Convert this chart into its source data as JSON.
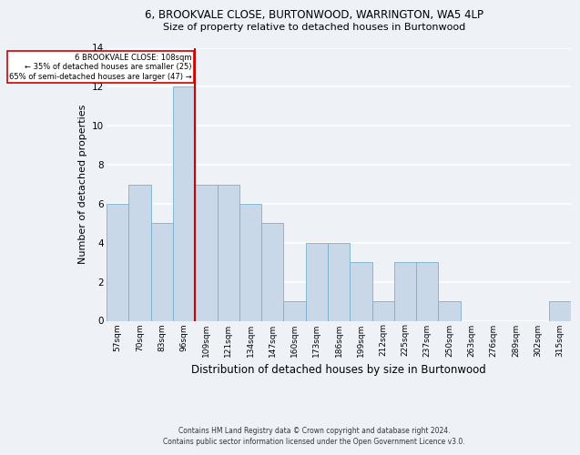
{
  "title_line1": "6, BROOKVALE CLOSE, BURTONWOOD, WARRINGTON, WA5 4LP",
  "title_line2": "Size of property relative to detached houses in Burtonwood",
  "xlabel": "Distribution of detached houses by size in Burtonwood",
  "ylabel": "Number of detached properties",
  "categories": [
    "57sqm",
    "70sqm",
    "83sqm",
    "96sqm",
    "109sqm",
    "121sqm",
    "134sqm",
    "147sqm",
    "160sqm",
    "173sqm",
    "186sqm",
    "199sqm",
    "212sqm",
    "225sqm",
    "237sqm",
    "250sqm",
    "263sqm",
    "276sqm",
    "289sqm",
    "302sqm",
    "315sqm"
  ],
  "values": [
    6,
    7,
    5,
    12,
    7,
    7,
    6,
    5,
    1,
    4,
    4,
    3,
    1,
    3,
    3,
    1,
    0,
    0,
    0,
    0,
    1
  ],
  "bar_color": "#c8d8e8",
  "bar_edge_color": "#7ab0cc",
  "marker_line_color": "#cc0000",
  "annotation_box_color": "#ffffff",
  "annotation_box_edge": "#cc0000",
  "marker_label": "6 BROOKVALE CLOSE: 108sqm",
  "marker_pct_smaller": "← 35% of detached houses are smaller (25)",
  "marker_pct_larger": "65% of semi-detached houses are larger (47) →",
  "ylim": [
    0,
    14
  ],
  "yticks": [
    0,
    2,
    4,
    6,
    8,
    10,
    12,
    14
  ],
  "background_color": "#eef2f7",
  "grid_color": "#ffffff",
  "footnote_line1": "Contains HM Land Registry data © Crown copyright and database right 2024.",
  "footnote_line2": "Contains public sector information licensed under the Open Government Licence v3.0."
}
